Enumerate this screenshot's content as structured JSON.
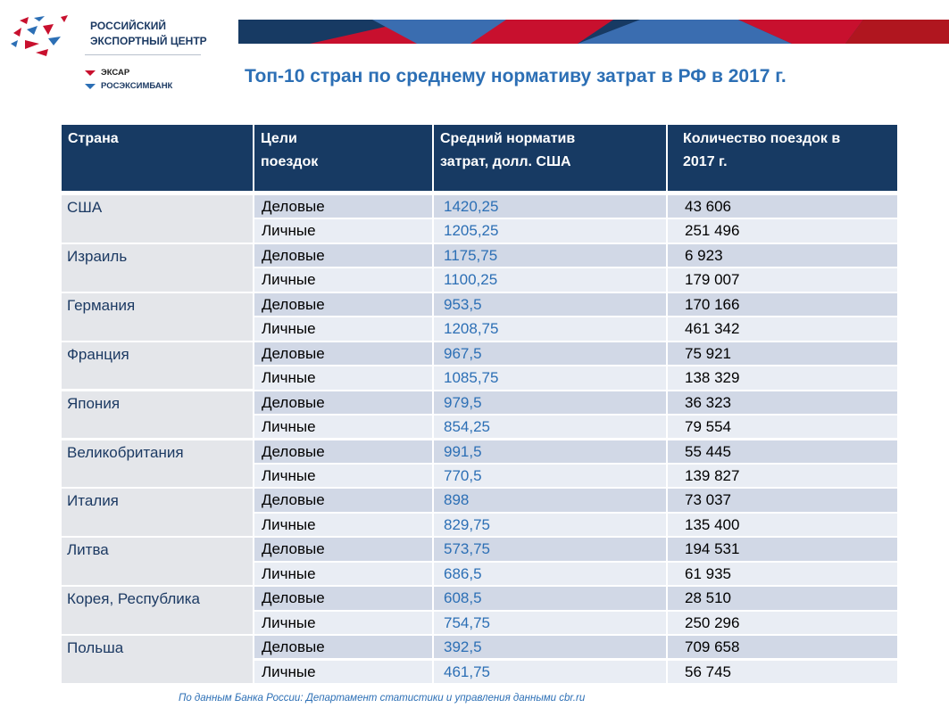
{
  "logo": {
    "org_name": "РОССИЙСКИЙ ЭКСПОРТНЫЙ ЦЕНТР",
    "sub1": "ЭКСАР",
    "sub2": "РОСЭКСИМБАНК"
  },
  "title": "Топ-10 стран по среднему нормативу затрат в РФ в 2017 г.",
  "headers": [
    "Страна",
    "Цели поездок",
    "Средний норматив затрат, долл. США",
    "Количество поездок в 2017 г."
  ],
  "rows": [
    {
      "country": "США",
      "items": [
        {
          "purpose": "Деловые",
          "cost": "1420,25",
          "trips": "43 606"
        },
        {
          "purpose": "Личные",
          "cost": "1205,25",
          "trips": "251 496"
        }
      ]
    },
    {
      "country": "Израиль",
      "items": [
        {
          "purpose": "Деловые",
          "cost": "1175,75",
          "trips": "6 923"
        },
        {
          "purpose": "Личные",
          "cost": "1100,25",
          "trips": "179 007"
        }
      ]
    },
    {
      "country": "Германия",
      "items": [
        {
          "purpose": "Деловые",
          "cost": "953,5",
          "trips": "170 166"
        },
        {
          "purpose": "Личные",
          "cost": "1208,75",
          "trips": "461 342"
        }
      ]
    },
    {
      "country": "Франция",
      "items": [
        {
          "purpose": "Деловые",
          "cost": "967,5",
          "trips": "75 921"
        },
        {
          "purpose": "Личные",
          "cost": "1085,75",
          "trips": "138 329"
        }
      ]
    },
    {
      "country": "Япония",
      "items": [
        {
          "purpose": "Деловые",
          "cost": "979,5",
          "trips": "36 323"
        },
        {
          "purpose": "Личные",
          "cost": "854,25",
          "trips": "79 554"
        }
      ]
    },
    {
      "country": "Великобритания",
      "items": [
        {
          "purpose": "Деловые",
          "cost": "991,5",
          "trips": "55 445"
        },
        {
          "purpose": "Личные",
          "cost": "770,5",
          "trips": "139 827"
        }
      ]
    },
    {
      "country": "Италия",
      "items": [
        {
          "purpose": "Деловые",
          "cost": "898",
          "trips": "73 037"
        },
        {
          "purpose": "Личные",
          "cost": "829,75",
          "trips": "135 400"
        }
      ]
    },
    {
      "country": "Литва",
      "items": [
        {
          "purpose": "Деловые",
          "cost": "573,75",
          "trips": "194 531"
        },
        {
          "purpose": "Личные",
          "cost": "686,5",
          "trips": "61 935"
        }
      ]
    },
    {
      "country": "Корея, Республика",
      "items": [
        {
          "purpose": "Деловые",
          "cost": "608,5",
          "trips": "28 510"
        },
        {
          "purpose": "Личные",
          "cost": "754,75",
          "trips": "250 296"
        }
      ]
    },
    {
      "country": "Польша",
      "items": [
        {
          "purpose": "Деловые",
          "cost": "392,5",
          "trips": "709 658"
        },
        {
          "purpose": "Личные",
          "cost": "461,75",
          "trips": "56 745"
        }
      ]
    }
  ],
  "source": "По данным Банка России: Департамент статистики и управления данными cbr.ru"
}
